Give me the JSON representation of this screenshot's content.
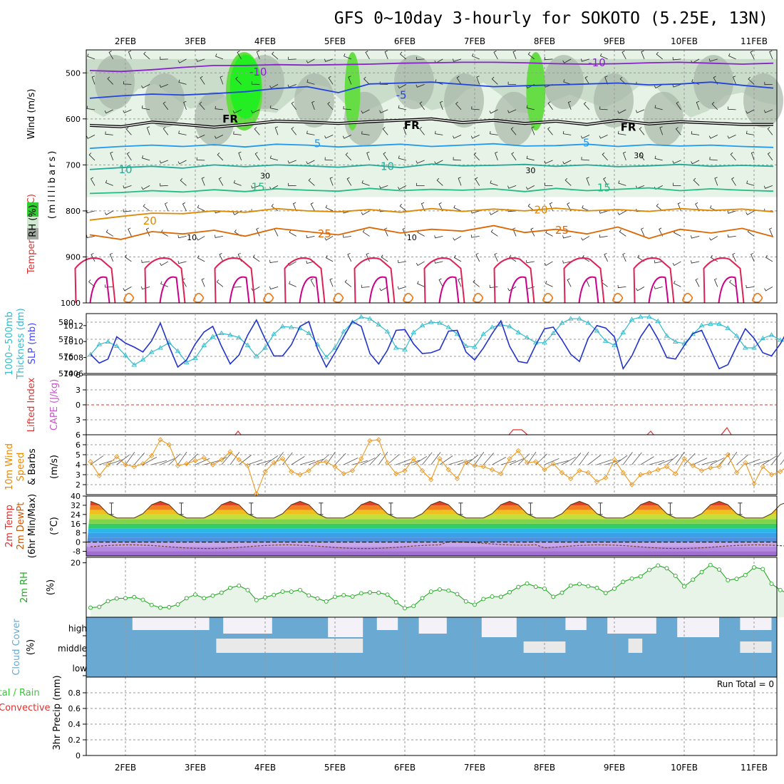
{
  "title": "GFS 0~10day 3-hourly for SOKOTO (5.25E, 13N)",
  "date_labels": [
    "2FEB",
    "3FEB",
    "4FEB",
    "5FEB",
    "6FEB",
    "7FEB",
    "8FEB",
    "9FEB",
    "10FEB",
    "11FEB"
  ],
  "run_total": "Run Total = 0",
  "colors": {
    "temperature": "#e03030",
    "wind": "#202020",
    "rh": "#33cc33",
    "thickness": "#33bbcc",
    "slp": "#4444ff",
    "cape": "#cc55cc",
    "lifted_index": "#e03030",
    "wind10": "#ee8800",
    "dewpt": "#cc5500",
    "rh2m": "#22aa22",
    "cloud": "#6aa9d2",
    "precip_conv": "#e03030"
  },
  "panel_labels": {
    "upper": {
      "wind": "Wind (m/s)",
      "temperature": "Temperature (°C)",
      "rh": "RH (%)",
      "unit": "(millibars)"
    },
    "thickness": {
      "thick": "1000~500mb",
      "thick2": "Thickness (dm)",
      "slp": "SLP (mb)"
    },
    "stability": {
      "li": "Lifted Index",
      "cape": "CAPE (J/kg)"
    },
    "wind10": {
      "a": "10m Wind",
      "b": "Speed",
      "c": "& Barbs",
      "unit": "(m/s)"
    },
    "temp2m": {
      "a": "2m Temp",
      "b": "2m DewPt",
      "c": "(6hr Min/Max)",
      "unit": "(°C)"
    },
    "rh2m": {
      "a": "2m RH",
      "unit": "(%)"
    },
    "cloud": {
      "a": "Cloud Cover",
      "unit": "(%)"
    },
    "precip": {
      "a": "Total / Rain",
      "b": "Convective",
      "c": "3hr Precip (mm)"
    }
  },
  "chart_data": [
    {
      "type": "contour",
      "panel": "upper-air",
      "y_axis": {
        "label": "millibars",
        "ticks": [
          500,
          600,
          700,
          800,
          900,
          1000
        ],
        "range": [
          450,
          1000
        ]
      },
      "isotherms": [
        {
          "label": "-10",
          "color": "#8822cc",
          "p": [
            495,
            497,
            493,
            488,
            484,
            484,
            482,
            483,
            482,
            481,
            479,
            478,
            477,
            477,
            478,
            480,
            481,
            480,
            478,
            477,
            479,
            481,
            479
          ]
        },
        {
          "label": "-5",
          "color": "#2244dd",
          "p": [
            555,
            550,
            546,
            548,
            545,
            541,
            534,
            530,
            543,
            524,
            522,
            520,
            525,
            530,
            528,
            526,
            524,
            522,
            526,
            524,
            520,
            527,
            533
          ]
        },
        {
          "label": "FR",
          "color": "#000000",
          "p": [
            614,
            617,
            607,
            612,
            618,
            612,
            605,
            607,
            610,
            606,
            603,
            600,
            608,
            603,
            610,
            605,
            612,
            603,
            611,
            606,
            609,
            612,
            612
          ]
        },
        {
          "label": "5",
          "color": "#2299ee",
          "p": [
            664,
            660,
            657,
            660,
            656,
            661,
            655,
            657,
            661,
            658,
            655,
            660,
            657,
            654,
            659,
            658,
            655,
            660,
            656,
            659,
            657,
            660,
            662
          ]
        },
        {
          "label": "10",
          "color": "#22aa99",
          "p": [
            710,
            706,
            703,
            707,
            700,
            704,
            700,
            702,
            705,
            700,
            706,
            698,
            702,
            701,
            699,
            703,
            700,
            704,
            702,
            699,
            703,
            701,
            703
          ]
        },
        {
          "label": "15",
          "color": "#22bb88",
          "p": [
            762,
            760,
            756,
            759,
            754,
            758,
            752,
            755,
            757,
            751,
            756,
            753,
            755,
            752,
            758,
            751,
            756,
            753,
            750,
            756,
            752,
            755,
            757
          ]
        },
        {
          "label": "20",
          "color": "#dd8800",
          "p": [
            820,
            812,
            805,
            806,
            800,
            803,
            795,
            800,
            802,
            797,
            803,
            795,
            801,
            796,
            800,
            794,
            800,
            797,
            801,
            795,
            799,
            796,
            802
          ]
        },
        {
          "label": "25",
          "color": "#dd6600",
          "p": [
            852,
            862,
            845,
            850,
            842,
            855,
            838,
            845,
            852,
            836,
            848,
            840,
            844,
            832,
            847,
            840,
            850,
            835,
            860,
            840,
            848,
            838,
            856
          ]
        }
      ],
      "isotherm_labels": [
        {
          "text": "-10",
          "color": "#8822cc",
          "x": 3.9,
          "p": 498
        },
        {
          "text": "-10",
          "color": "#8822cc",
          "x": 8.75,
          "p": 478
        },
        {
          "text": "-5",
          "color": "#2244dd",
          "x": 5.95,
          "p": 548
        },
        {
          "text": "FR",
          "color": "#000000",
          "x": 3.5,
          "p": 600
        },
        {
          "text": "FR",
          "color": "#000000",
          "x": 6.1,
          "p": 614
        },
        {
          "text": "FR",
          "color": "#000000",
          "x": 9.2,
          "p": 618
        },
        {
          "text": "5",
          "color": "#2299ee",
          "x": 4.75,
          "p": 654
        },
        {
          "text": "5",
          "color": "#2299ee",
          "x": 8.6,
          "p": 652
        },
        {
          "text": "10",
          "color": "#22aa99",
          "x": 2.0,
          "p": 710
        },
        {
          "text": "10",
          "color": "#22aa99",
          "x": 5.75,
          "p": 703
        },
        {
          "text": "15",
          "color": "#22bb88",
          "x": 3.9,
          "p": 748
        },
        {
          "text": "15",
          "color": "#22bb88",
          "x": 8.85,
          "p": 750
        },
        {
          "text": "20",
          "color": "#dd8800",
          "x": 2.35,
          "p": 822
        },
        {
          "text": "20",
          "color": "#dd8800",
          "x": 7.95,
          "p": 798
        },
        {
          "text": "25",
          "color": "#dd6600",
          "x": 4.85,
          "p": 850
        },
        {
          "text": "25",
          "color": "#dd6600",
          "x": 8.25,
          "p": 842
        },
        {
          "text": "30",
          "color": "#888888",
          "x": 9.35,
          "p": 678
        },
        {
          "text": "30",
          "color": "#888888",
          "x": 4.0,
          "p": 722
        },
        {
          "text": "10",
          "color": "#888888",
          "x": 2.95,
          "p": 856
        },
        {
          "text": "10",
          "color": "#888888",
          "x": 6.1,
          "p": 856
        },
        {
          "text": "30",
          "color": "#888888",
          "x": 7.8,
          "p": 710
        }
      ],
      "rh_shading_levels": [
        70,
        90
      ],
      "rh_high_patches_day": [
        [
          3.5,
          3.9
        ],
        [
          5.2,
          5.3
        ],
        [
          7.8,
          7.95
        ]
      ]
    },
    {
      "type": "line",
      "panel": "thickness-slp",
      "x": "days from 1.5 to 11.25 in 0.125 steps",
      "series": [
        {
          "name": "1000~500mb Thickness (dm)",
          "y_range": [
            574,
            581
          ],
          "ticks": [
            574,
            576,
            578,
            580
          ],
          "values": [
            576.2,
            577.4,
            577.7,
            577.2,
            576.1,
            575.0,
            575.6,
            576.5,
            577.0,
            577.6,
            576.6,
            575.3,
            575.8,
            577.3,
            578.3,
            578.7,
            578.5,
            578.2,
            577.3,
            576.0,
            577.0,
            578.6,
            579.5,
            579.4,
            579.3,
            578.7,
            577.4,
            575.9,
            577.0,
            578.9,
            580.0,
            580.6,
            580.4,
            579.7,
            578.9,
            577.0,
            576.8,
            578.8,
            579.6,
            580.0,
            579.9,
            579.4,
            578.6,
            577.2,
            577.1,
            578.6,
            579.4,
            579.7,
            579.5,
            578.8,
            578.2,
            577.6,
            577.6,
            578.7,
            579.9,
            580.4,
            580.4,
            579.9,
            579.0,
            577.8,
            577.3,
            578.8,
            580.3,
            580.6,
            580.6,
            580.1,
            578.4,
            577.7,
            577.5,
            578.6,
            579.6,
            579.8,
            579.8,
            579.3,
            578.4,
            577.0,
            577.0,
            578.1,
            578.5,
            577.9,
            577.6,
            577.0
          ]
        },
        {
          "name": "SLP (mb)",
          "y_range": [
            1006,
            1013.5
          ],
          "ticks": [
            1006,
            1008,
            1010,
            1012
          ],
          "values": [
            1008.4,
            1007.3,
            1007.8,
            1010.6,
            1009.8,
            1009.3,
            1008.7,
            1010.1,
            1012.3,
            1009.4,
            1006.8,
            1007.7,
            1009.7,
            1011.2,
            1011.9,
            1009.4,
            1007.2,
            1008.3,
            1010.8,
            1012.7,
            1010.3,
            1008.2,
            1008.2,
            1009.6,
            1011.9,
            1012.5,
            1009.1,
            1006.8,
            1008.6,
            1010.6,
            1012.5,
            1011.9,
            1008.5,
            1007.2,
            1008.9,
            1011.4,
            1011.5,
            1009.7,
            1008.5,
            1008.6,
            1009.0,
            1011.3,
            1011.4,
            1008.7,
            1007.7,
            1009.2,
            1011.0,
            1012.6,
            1009.4,
            1007.5,
            1007.3,
            1009.6,
            1011.6,
            1011.8,
            1010.2,
            1008.4,
            1007.5,
            1010.4,
            1012.0,
            1011.7,
            1010.6,
            1006.6,
            1008.2,
            1010.6,
            1012.2,
            1010.3,
            1008.0,
            1007.8,
            1009.5,
            1011.0,
            1011.4,
            1009.0,
            1006.6,
            1007.1,
            1009.4,
            1011.6,
            1010.4,
            1008.6,
            1008.2,
            1009.7,
            1011.7,
            1008.6
          ]
        }
      ]
    },
    {
      "type": "line",
      "panel": "stability",
      "series": [
        {
          "name": "Lifted Index",
          "y_range": [
            6,
            -6
          ],
          "ticks": [
            -6,
            -3,
            0,
            3,
            6
          ]
        },
        {
          "name": "CAPE (J/kg)"
        }
      ],
      "zero_line": 0
    },
    {
      "type": "line",
      "panel": "wind10m",
      "series": [
        {
          "name": "10m Wind Speed (m/s)",
          "y_range": [
            1,
            7
          ],
          "ticks": [
            2,
            3,
            4,
            5,
            6
          ],
          "values": [
            4.3,
            2.9,
            4.0,
            4.8,
            4.0,
            3.8,
            4.1,
            4.9,
            6.5,
            6.0,
            3.9,
            4.1,
            4.4,
            4.7,
            4.0,
            4.5,
            5.3,
            4.5,
            3.9,
            1.1,
            3.3,
            4.2,
            4.6,
            3.3,
            3.0,
            3.4,
            4.2,
            4.3,
            3.8,
            3.1,
            3.4,
            4.6,
            6.4,
            6.5,
            4.2,
            3.1,
            3.4,
            4.6,
            3.4,
            2.5,
            4.6,
            3.5,
            2.6,
            4.3,
            3.9,
            3.8,
            3.5,
            3.1,
            4.6,
            5.4,
            4.2,
            4.3,
            3.5,
            4.1,
            3.2,
            2.6,
            3.4,
            3.2,
            2.3,
            2.7,
            4.5,
            3.2,
            2.0,
            3.0,
            3.2,
            3.5,
            3.8,
            3.1,
            4.6,
            3.9,
            3.4,
            3.7,
            3.8,
            5.0,
            3.2,
            4.2,
            2.1,
            3.8,
            3.0,
            3.3,
            4.0,
            3.6
          ]
        }
      ]
    },
    {
      "type": "area",
      "panel": "temp2m",
      "y_axis": {
        "range": [
          -12,
          40
        ],
        "ticks": [
          -8,
          0,
          8,
          16,
          24,
          32,
          40
        ]
      },
      "temperature_bands": [
        -12,
        -8,
        -4,
        0,
        4,
        8,
        12,
        16,
        20,
        24,
        28,
        32,
        36,
        40
      ],
      "band_colors": [
        "#8d5fc7",
        "#a06fd0",
        "#b38ae0",
        "#c9a6ec",
        "#4e8fe0",
        "#3aa0e8",
        "#2bb7e8",
        "#33cc66",
        "#7fd44a",
        "#c8de3a",
        "#f0c020",
        "#f08020",
        "#e04020",
        "#c01818"
      ],
      "temp_range": {
        "min": 21,
        "max": 37
      },
      "dewpoint_range": {
        "min": -8,
        "max": 4
      },
      "periods_days": 10
    },
    {
      "type": "line",
      "panel": "rh2m",
      "series": [
        {
          "name": "2m RH (%)",
          "y_range": [
            0,
            22
          ],
          "ticks": [
            20
          ],
          "values": [
            3.5,
            3.8,
            5.9,
            6.9,
            7.0,
            7.4,
            6.4,
            4.5,
            3.5,
            3.7,
            4.7,
            7.0,
            8.3,
            7.0,
            7.9,
            9.0,
            10.8,
            11.6,
            10.0,
            6.3,
            7.3,
            8.2,
            9.4,
            9.4,
            10.0,
            8.0,
            6.9,
            5.8,
            7.5,
            8.1,
            7.6,
            8.8,
            9.1,
            9.0,
            8.3,
            5.5,
            3.3,
            4.1,
            7.0,
            9.4,
            10.2,
            9.8,
            8.5,
            5.8,
            4.6,
            6.7,
            7.6,
            7.5,
            9.2,
            11.1,
            12.4,
            11.2,
            10.5,
            7.5,
            9.0,
            11.6,
            12.2,
            11.4,
            10.8,
            8.9,
            10.5,
            13.0,
            14.2,
            15.0,
            17.4,
            19.0,
            18.0,
            15.2,
            11.3,
            13.8,
            16.6,
            19.2,
            17.5,
            13.6,
            14.1,
            15.5,
            18.3,
            17.7,
            12.3,
            10.0,
            8.5,
            8.2
          ]
        }
      ]
    },
    {
      "type": "area",
      "panel": "cloud",
      "categories": [
        "high",
        "middle",
        "low"
      ],
      "note": "stacked cloud cover blocks, blue = cloud"
    },
    {
      "type": "bar",
      "panel": "precip",
      "y_axis": {
        "range": [
          0,
          1
        ],
        "ticks": [
          0,
          0.2,
          0.4,
          0.6,
          0.8
        ]
      },
      "values_total": [],
      "values_convective": []
    }
  ]
}
